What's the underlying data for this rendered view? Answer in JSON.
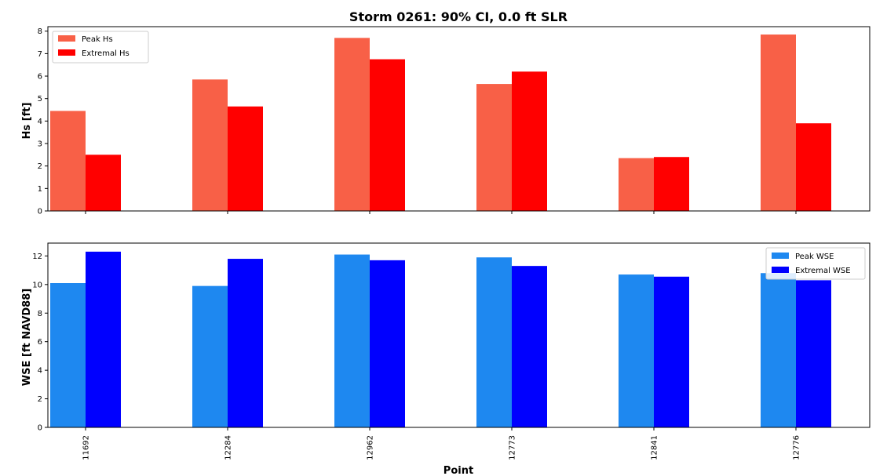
{
  "chart_data": {
    "title": "Storm 0261: 90% CI, 0.0 ft SLR",
    "type": "bar",
    "xlabel": "Point",
    "categories": [
      "11692",
      "12284",
      "12962",
      "12773",
      "12841",
      "12776"
    ],
    "panels": [
      {
        "ylabel": "Hs [ft]",
        "ylim": [
          0,
          8.2
        ],
        "yticks": [
          0,
          1,
          2,
          3,
          4,
          5,
          6,
          7,
          8
        ],
        "legend_position": "top-left",
        "series": [
          {
            "name": "Peak Hs",
            "color": "#f86047",
            "values": [
              4.45,
              5.85,
              7.7,
              5.65,
              2.35,
              7.85
            ]
          },
          {
            "name": "Extremal Hs",
            "color": "#ff0000",
            "values": [
              2.5,
              4.65,
              6.75,
              6.2,
              2.4,
              3.9
            ]
          }
        ]
      },
      {
        "ylabel": "WSE [ft NAVD88]",
        "ylim": [
          0,
          12.9
        ],
        "yticks": [
          0,
          2,
          4,
          6,
          8,
          10,
          12
        ],
        "legend_position": "top-right",
        "series": [
          {
            "name": "Peak WSE",
            "color": "#1e88f0",
            "values": [
              10.1,
              9.9,
              12.1,
              11.9,
              10.7,
              10.8
            ]
          },
          {
            "name": "Extremal WSE",
            "color": "#0000ff",
            "values": [
              12.3,
              11.8,
              11.7,
              11.3,
              10.55,
              10.3
            ]
          }
        ]
      }
    ]
  }
}
